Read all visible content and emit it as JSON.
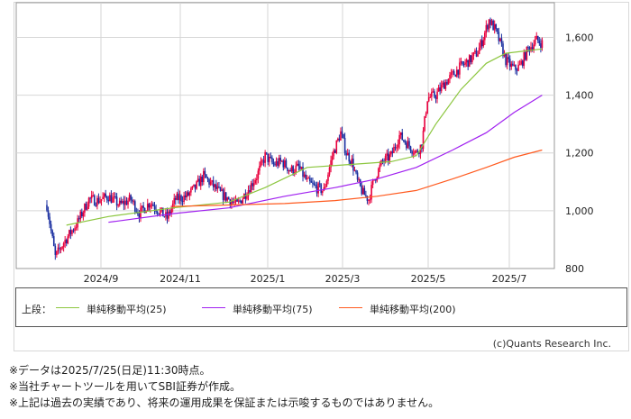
{
  "chart_data": {
    "type": "candlestick",
    "x_tick_labels": [
      "2024/9",
      "2024/11",
      "2025/1",
      "2025/3",
      "2025/5",
      "2025/7"
    ],
    "y_tick_labels": [
      "1,600",
      "1,400",
      "1,200",
      "1,000",
      "800"
    ],
    "y_ticks": [
      1600,
      1400,
      1200,
      1000,
      800
    ],
    "ylim": [
      800,
      1720
    ],
    "grid": true,
    "up_color": "#e8003d",
    "down_color": "#1a2fa0",
    "price_path": [
      [
        0,
        1020
      ],
      [
        6,
        840
      ],
      [
        12,
        890
      ],
      [
        22,
        960
      ],
      [
        30,
        1040
      ],
      [
        36,
        1035
      ],
      [
        44,
        1050
      ],
      [
        52,
        1020
      ],
      [
        60,
        1040
      ],
      [
        66,
        990
      ],
      [
        74,
        1030
      ],
      [
        80,
        1000
      ],
      [
        86,
        975
      ],
      [
        92,
        1040
      ],
      [
        100,
        1050
      ],
      [
        106,
        1080
      ],
      [
        112,
        1120
      ],
      [
        118,
        1090
      ],
      [
        124,
        1060
      ],
      [
        130,
        1040
      ],
      [
        136,
        1020
      ],
      [
        142,
        1060
      ],
      [
        150,
        1120
      ],
      [
        156,
        1190
      ],
      [
        162,
        1160
      ],
      [
        168,
        1170
      ],
      [
        174,
        1140
      ],
      [
        180,
        1150
      ],
      [
        186,
        1100
      ],
      [
        192,
        1080
      ],
      [
        198,
        1070
      ],
      [
        204,
        1190
      ],
      [
        210,
        1270
      ],
      [
        214,
        1200
      ],
      [
        218,
        1170
      ],
      [
        222,
        1100
      ],
      [
        226,
        1060
      ],
      [
        230,
        1040
      ],
      [
        234,
        1110
      ],
      [
        240,
        1170
      ],
      [
        246,
        1190
      ],
      [
        252,
        1260
      ],
      [
        258,
        1230
      ],
      [
        264,
        1200
      ],
      [
        268,
        1230
      ],
      [
        272,
        1390
      ],
      [
        278,
        1400
      ],
      [
        284,
        1440
      ],
      [
        290,
        1470
      ],
      [
        296,
        1500
      ],
      [
        302,
        1520
      ],
      [
        308,
        1550
      ],
      [
        312,
        1600
      ],
      [
        316,
        1660
      ],
      [
        320,
        1630
      ],
      [
        324,
        1580
      ],
      [
        328,
        1520
      ],
      [
        334,
        1490
      ],
      [
        338,
        1500
      ],
      [
        344,
        1560
      ],
      [
        350,
        1590
      ],
      [
        354,
        1580
      ]
    ],
    "series": [
      {
        "name": "単純移動平均(25)",
        "color": "#8cc63f",
        "points": [
          [
            14,
            950
          ],
          [
            44,
            980
          ],
          [
            90,
            1010
          ],
          [
            130,
            1030
          ],
          [
            156,
            1080
          ],
          [
            186,
            1150
          ],
          [
            216,
            1160
          ],
          [
            246,
            1170
          ],
          [
            264,
            1190
          ],
          [
            278,
            1300
          ],
          [
            296,
            1420
          ],
          [
            314,
            1510
          ],
          [
            328,
            1545
          ],
          [
            354,
            1560
          ]
        ]
      },
      {
        "name": "単純移動平均(75)",
        "color": "#a020f0",
        "points": [
          [
            44,
            960
          ],
          [
            90,
            990
          ],
          [
            130,
            1010
          ],
          [
            170,
            1050
          ],
          [
            206,
            1080
          ],
          [
            236,
            1110
          ],
          [
            264,
            1150
          ],
          [
            290,
            1210
          ],
          [
            314,
            1270
          ],
          [
            334,
            1340
          ],
          [
            354,
            1400
          ]
        ]
      },
      {
        "name": "単純移動平均(200)",
        "color": "#ff5a1f",
        "points": [
          [
            90,
            1015
          ],
          [
            130,
            1020
          ],
          [
            170,
            1025
          ],
          [
            206,
            1035
          ],
          [
            236,
            1050
          ],
          [
            264,
            1070
          ],
          [
            290,
            1110
          ],
          [
            314,
            1150
          ],
          [
            334,
            1185
          ],
          [
            354,
            1210
          ]
        ]
      }
    ]
  },
  "legend": {
    "prefix": "上段：",
    "items": [
      "単純移動平均(25)",
      "単純移動平均(75)",
      "単純移動平均(200)"
    ]
  },
  "copyright": "(c)Quants Research Inc.",
  "notes": [
    "※データは2025/7/25(日足)11:30時点。",
    "※当社チャートツールを用いてSBI証券が作成。",
    "※上記は過去の実績であり、将来の運用成果を保証または示唆するものではありません。"
  ]
}
